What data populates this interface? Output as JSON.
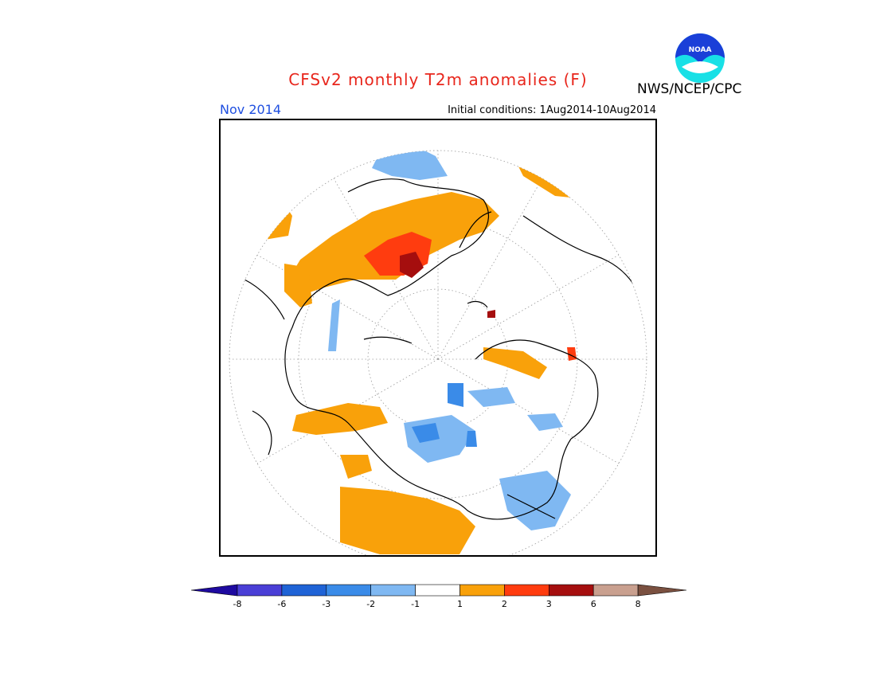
{
  "header": {
    "title": "CFSv2 monthly T2m anomalies (F)",
    "month": "Nov 2014",
    "initial_conditions": "Initial conditions: 1Aug2014-10Aug2014",
    "agency": "NWS/NCEP/CPC",
    "logo_text": "NOAA"
  },
  "legend": {
    "colors": [
      "#1e0aa0",
      "#4a3fd6",
      "#1f63d6",
      "#3a8be8",
      "#7fb8f2",
      "#ffffff",
      "#f9a10a",
      "#ff3c0f",
      "#a50e0e",
      "#c9a08f",
      "#7a5040"
    ],
    "ticks": [
      "-8",
      "-6",
      "-3",
      "-2",
      "-1",
      "1",
      "2",
      "3",
      "6",
      "8"
    ]
  },
  "colors": {
    "title": "#e8261c",
    "month": "#1f4fe0",
    "anomaly_warm": "#f9a10a",
    "anomaly_hot": "#ff3c0f",
    "anomaly_very_hot": "#a50e0e",
    "anomaly_cool": "#7fb8f2",
    "anomaly_cold": "#3a8be8"
  }
}
